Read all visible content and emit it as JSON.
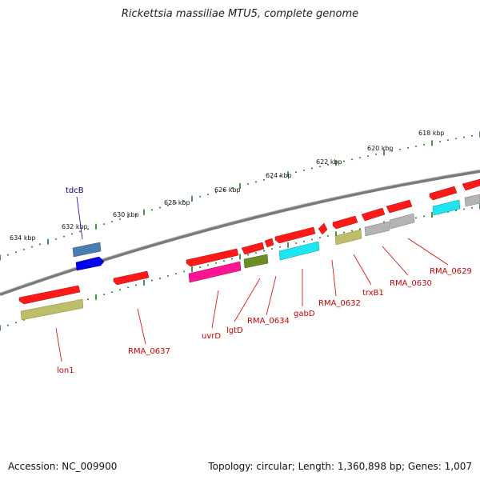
{
  "title": "Rickettsia massiliae MTU5, complete genome",
  "footer": {
    "accession": "Accession: NC_009900",
    "summary": "Topology: circular; Length: 1,360,898 bp; Genes: 1,007"
  },
  "scale_labels": [
    "618 kbp",
    "620 kbp",
    "622 kbp",
    "624 kbp",
    "626 kbp",
    "628 kbp",
    "630 kbp",
    "632 kbp",
    "634 kbp"
  ],
  "gene_labels": [
    "tdcB",
    "lon1",
    "RMA_0637",
    "uvrD",
    "lgtD",
    "RMA_0634",
    "gabD",
    "RMA_0632",
    "trxB1",
    "RMA_0630",
    "RMA_0629"
  ],
  "colors": {
    "backbone": "#7a7a7a",
    "scale_ticks": "#1a7a1a",
    "gene_label_red": "#cc0000",
    "gene_label_blue": "#00008b",
    "cds_red": "#ff1a1a",
    "olive": "#bdbd6a",
    "dark_olive": "#6b8e23",
    "magenta": "#ff1493",
    "cyan": "#1ee6f0",
    "gray": "#b4b4b4",
    "steelblue": "#4a7db0",
    "blue": "#0000ee"
  }
}
